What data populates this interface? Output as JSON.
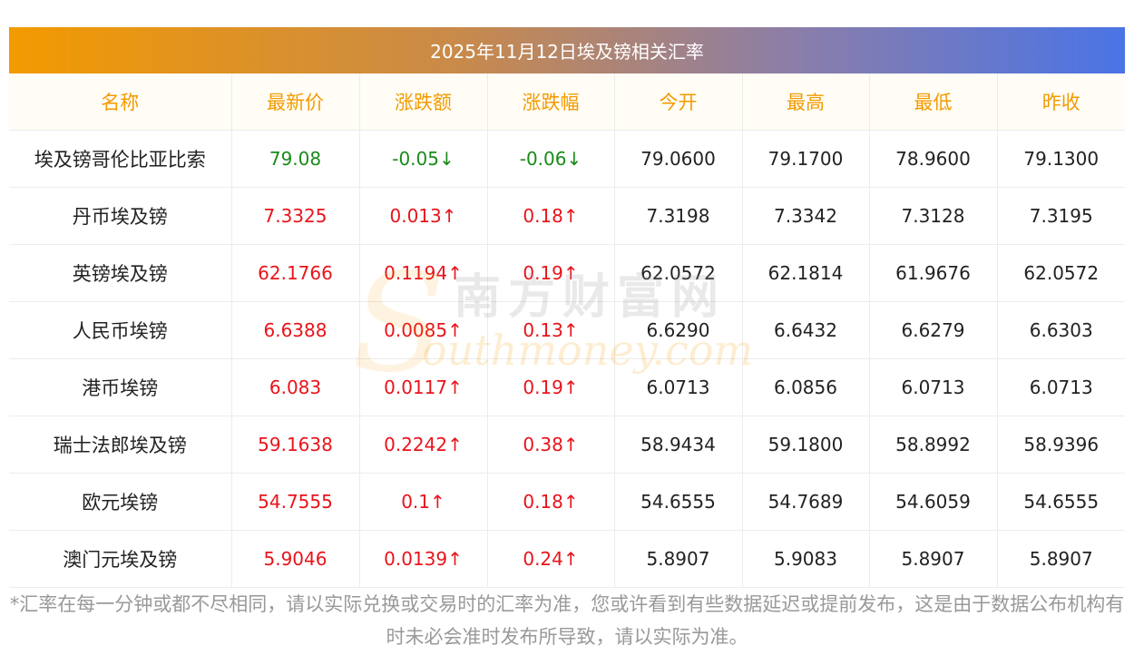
{
  "title": "2025年11月12日埃及镑相关汇率",
  "headers": [
    "名称",
    "最新价",
    "涨跌额",
    "涨跌幅",
    "今开",
    "最高",
    "最低",
    "昨收"
  ],
  "rows": [
    {
      "name": "埃及镑哥伦比亚比索",
      "latest": "79.08",
      "change": "-0.05↓",
      "pct": "-0.06↓",
      "open": "79.0600",
      "high": "79.1700",
      "low": "78.9600",
      "prev": "79.1300",
      "dir": "down"
    },
    {
      "name": "丹币埃及镑",
      "latest": "7.3325",
      "change": "0.013↑",
      "pct": "0.18↑",
      "open": "7.3198",
      "high": "7.3342",
      "low": "7.3128",
      "prev": "7.3195",
      "dir": "up"
    },
    {
      "name": "英镑埃及镑",
      "latest": "62.1766",
      "change": "0.1194↑",
      "pct": "0.19↑",
      "open": "62.0572",
      "high": "62.1814",
      "low": "61.9676",
      "prev": "62.0572",
      "dir": "up"
    },
    {
      "name": "人民币埃镑",
      "latest": "6.6388",
      "change": "0.0085↑",
      "pct": "0.13↑",
      "open": "6.6290",
      "high": "6.6432",
      "low": "6.6279",
      "prev": "6.6303",
      "dir": "up"
    },
    {
      "name": "港币埃镑",
      "latest": "6.083",
      "change": "0.0117↑",
      "pct": "0.19↑",
      "open": "6.0713",
      "high": "6.0856",
      "low": "6.0713",
      "prev": "6.0713",
      "dir": "up"
    },
    {
      "name": "瑞士法郎埃及镑",
      "latest": "59.1638",
      "change": "0.2242↑",
      "pct": "0.38↑",
      "open": "58.9434",
      "high": "59.1800",
      "low": "58.8992",
      "prev": "58.9396",
      "dir": "up"
    },
    {
      "name": "欧元埃镑",
      "latest": "54.7555",
      "change": "0.1↑",
      "pct": "0.18↑",
      "open": "54.6555",
      "high": "54.7689",
      "low": "54.6059",
      "prev": "54.6555",
      "dir": "up"
    },
    {
      "name": "澳门元埃及镑",
      "latest": "5.9046",
      "change": "0.0139↑",
      "pct": "0.24↑",
      "open": "5.8907",
      "high": "5.9083",
      "low": "5.8907",
      "prev": "5.8907",
      "dir": "up"
    }
  ],
  "watermark": {
    "cn": "南方财富网",
    "en": "outhmoney.com",
    "s": "S"
  },
  "footnote": "*汇率在每一分钟或都不尽相同，请以实际兑换或交易时的汇率为准，您或许看到有些数据延迟或提前发布，这是由于数据公布机构有时未必会准时发布所导致，请以实际为准。",
  "colors": {
    "header_text": "#f39a00",
    "up": "#e8141b",
    "down": "#1a8a1a",
    "gradient_start": "#f39a00",
    "gradient_end": "#4a74e6"
  }
}
